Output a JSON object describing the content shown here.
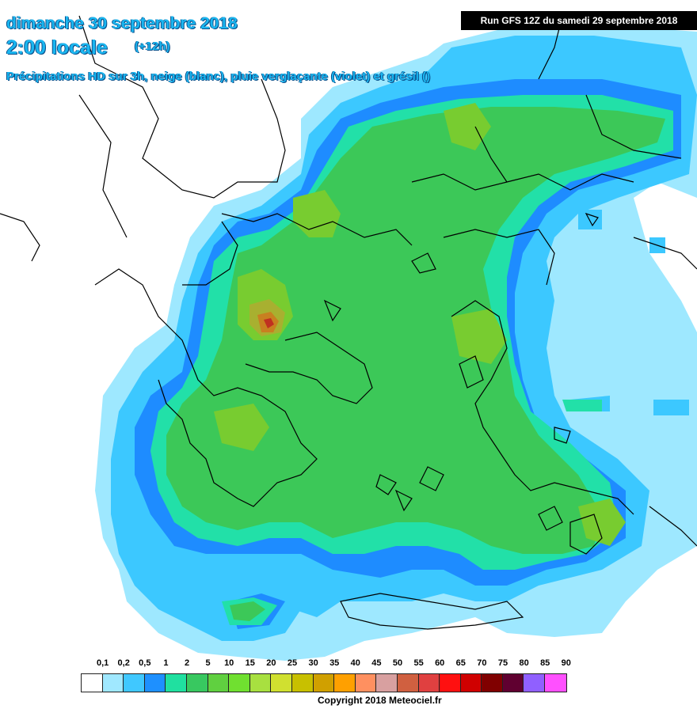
{
  "header": {
    "date_line": "dimanche 30 septembre 2018",
    "time_line": "2:00 locale",
    "offset": "(+12h)",
    "subtitle": "Précipitations HD sur 3h, neige (blanc), pluie verglaçante (violet) et grésil ()"
  },
  "run_info": "Run GFS 12Z du samedi 29 septembre 2018",
  "legend": {
    "labels": [
      "0,1",
      "0,2",
      "0,5",
      "1",
      "2",
      "5",
      "10",
      "15",
      "20",
      "25",
      "30",
      "35",
      "40",
      "45",
      "50",
      "55",
      "60",
      "65",
      "70",
      "75",
      "80",
      "85",
      "90"
    ],
    "colors": [
      "#ffffff",
      "#a0e8ff",
      "#40c8ff",
      "#1e90ff",
      "#20e0a0",
      "#38c860",
      "#60d040",
      "#70e030",
      "#a8e040",
      "#d0e030",
      "#c8c000",
      "#d0a000",
      "#ffa000",
      "#ff9060",
      "#d8a0a0",
      "#d06040",
      "#e04040",
      "#ff1010",
      "#d00000",
      "#800000",
      "#600030",
      "#9060ff",
      "#ff50ff"
    ]
  },
  "map_colors": {
    "light_blue": "#9ee8ff",
    "cyan": "#3cc8ff",
    "blue": "#1e8cff",
    "aqua_green": "#22e0a8",
    "green": "#3cc858",
    "yellow_green": "#78cc30",
    "olive": "#a8b030",
    "orange": "#c88020",
    "red": "#c03020",
    "border": "#000000"
  },
  "copyright": "Copyright 2018 Meteociel.fr"
}
